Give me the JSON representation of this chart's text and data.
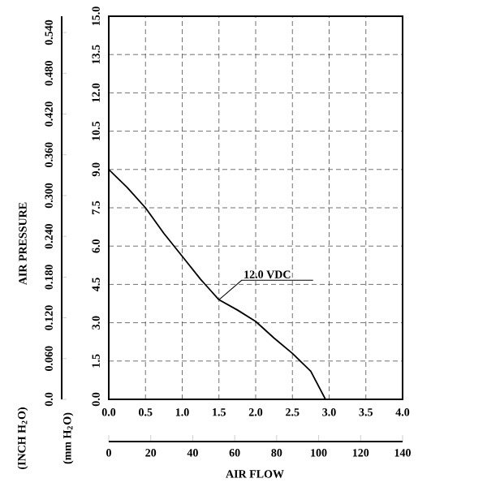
{
  "chart_data": {
    "type": "line",
    "xlabel": "AIR FLOW",
    "x": [
      0,
      0.25,
      0.5,
      0.75,
      1.0,
      1.25,
      1.5,
      1.75,
      2.0,
      2.25,
      2.5,
      2.75,
      2.95
    ],
    "series": [
      {
        "color": "#000000",
        "values": [
          9.0,
          8.3,
          7.5,
          6.5,
          5.6,
          4.7,
          3.9,
          3.5,
          3.05,
          2.4,
          1.8,
          1.1,
          0
        ]
      }
    ],
    "xlim": [
      0,
      4
    ],
    "ylim": [
      0,
      15
    ],
    "y2lim": [
      0,
      0.564
    ],
    "x2lim": [
      0,
      140
    ],
    "xticks": [
      {
        "value": 0,
        "label": "0.0"
      },
      {
        "value": 0.5,
        "label": "0.5"
      },
      {
        "value": 1,
        "label": "1.0"
      },
      {
        "value": 1.5,
        "label": "1.5"
      },
      {
        "value": 2,
        "label": "2.0"
      },
      {
        "value": 2.5,
        "label": "2.5"
      },
      {
        "value": 3,
        "label": "3.0"
      },
      {
        "value": 3.5,
        "label": "3.5"
      },
      {
        "value": 4,
        "label": "4.0"
      }
    ],
    "yticks": [
      {
        "value": 0,
        "label": "0.0"
      },
      {
        "value": 1.5,
        "label": "1.5"
      },
      {
        "value": 3,
        "label": "3.0"
      },
      {
        "value": 4.5,
        "label": "4.5"
      },
      {
        "value": 6,
        "label": "6.0"
      },
      {
        "value": 7.5,
        "label": "7.5"
      },
      {
        "value": 9,
        "label": "9.0"
      },
      {
        "value": 10.5,
        "label": "10.5"
      },
      {
        "value": 12,
        "label": "12.0"
      },
      {
        "value": 13.5,
        "label": "13.5"
      },
      {
        "value": 15,
        "label": "15.0"
      }
    ],
    "y2ticks": [
      {
        "value": 0,
        "label": "0.0"
      },
      {
        "value": 0.06,
        "label": "0.060"
      },
      {
        "value": 0.12,
        "label": "0.120"
      },
      {
        "value": 0.18,
        "label": "0.180"
      },
      {
        "value": 0.24,
        "label": "0.240"
      },
      {
        "value": 0.3,
        "label": "0.300"
      },
      {
        "value": 0.36,
        "label": "0.360"
      },
      {
        "value": 0.42,
        "label": "0.420"
      },
      {
        "value": 0.48,
        "label": "0.480"
      },
      {
        "value": 0.54,
        "label": "0.540"
      }
    ],
    "x2ticks": [
      0,
      20,
      40,
      60,
      80,
      100,
      120,
      140
    ],
    "grid": true,
    "marker": "none",
    "line_style": "solid",
    "annotations": [
      {
        "text": "12.0 VDC",
        "x": 1.5,
        "y": 3.9
      },
      "AIR PRESSURE",
      "(INCH H$_{2}$O)",
      "(mm H$_{2}$O)"
    ]
  }
}
